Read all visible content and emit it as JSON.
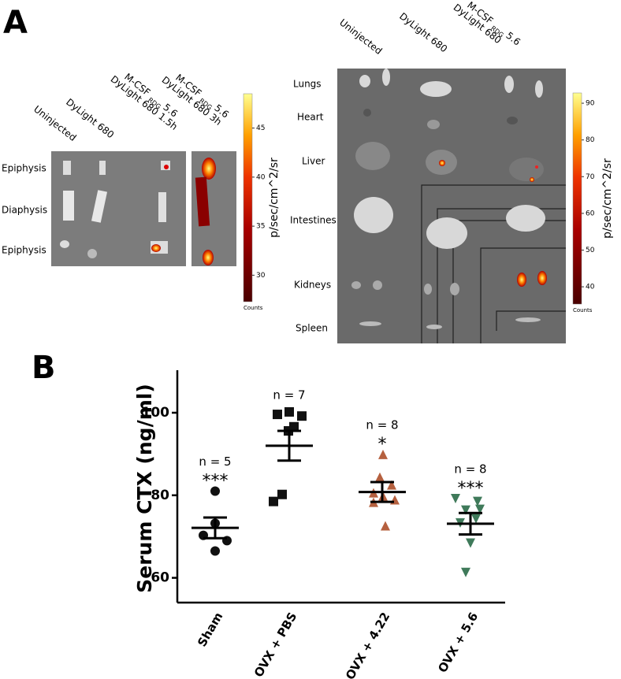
{
  "panel_a": {
    "label": "A",
    "bone": {
      "columns": [
        {
          "line1": "Uninjected"
        },
        {
          "line1": "DyLight 680"
        },
        {
          "line1": "M-CSF",
          "sub": "RDG",
          "line1_end": "5.6",
          "line2": "DyLight 680 1.5h"
        },
        {
          "line1": "M-CSF",
          "sub": "RDG",
          "line1_end": "5.6",
          "line2": "DyLight 680 3h"
        }
      ],
      "rows": [
        "Epiphysis",
        "Diaphysis",
        "Epiphysis"
      ],
      "colorbar": {
        "label": "p/sec/cm^2/sr",
        "unit_label": "Counts",
        "ylim": [
          27.3,
          48.5
        ],
        "yticks": [
          30,
          35,
          40,
          45
        ]
      }
    },
    "organ": {
      "columns": [
        {
          "line1": "Uninjected"
        },
        {
          "line1": "DyLight 680"
        },
        {
          "line1": "M-CSF",
          "sub": "RDG",
          "line1_end": "5.6",
          "line2": "DyLight 680"
        }
      ],
      "rows": [
        "Lungs",
        "Heart",
        "Liver",
        "Intestines",
        "Kidneys",
        "Spleen"
      ],
      "colorbar": {
        "label": "p/sec/cm^2/sr",
        "unit_label": "Counts",
        "ylim": [
          35.3,
          92.8
        ],
        "yticks": [
          40,
          50,
          60,
          70,
          80,
          90
        ]
      }
    }
  },
  "chart_data": {
    "type": "dot",
    "panel_label": "B",
    "y_label": "Serum CTX (ng/ml)",
    "ylim": [
      54,
      110.3
    ],
    "yticks": [
      60,
      80,
      100
    ],
    "groups": [
      {
        "category": "Sham",
        "color": "#111111",
        "marker": "circle",
        "values": [
          81,
          70.3,
          69,
          66.5,
          73.2
        ],
        "mean": 72.1,
        "sem": 2.5,
        "n_label": "n = 5",
        "significance": "***"
      },
      {
        "category": "OVX + PBS",
        "color": "#111111",
        "marker": "square",
        "values": [
          99.6,
          100.2,
          99.2,
          96.6,
          95.6,
          80.2,
          78.5
        ],
        "mean": 92,
        "sem": 3.6,
        "n_label": "n = 7"
      },
      {
        "category": "OVX + 4.22",
        "color": "#b5603f",
        "marker": "triangle-up",
        "values": [
          89.9,
          84.4,
          82.5,
          80.6,
          79.8,
          78.9,
          78.3,
          72.6
        ],
        "mean": 80.8,
        "sem": 2.4,
        "n_label": "n = 8",
        "significance": "*"
      },
      {
        "category": "OVX + 5.6",
        "color": "#3f7a5a",
        "marker": "triangle-down",
        "values": [
          79.2,
          78.5,
          76.4,
          74.3,
          73.3,
          68.4,
          61.3,
          76.6
        ],
        "mean": 73.1,
        "sem": 2.6,
        "n_label": "n = 8",
        "significance": "***"
      }
    ]
  }
}
